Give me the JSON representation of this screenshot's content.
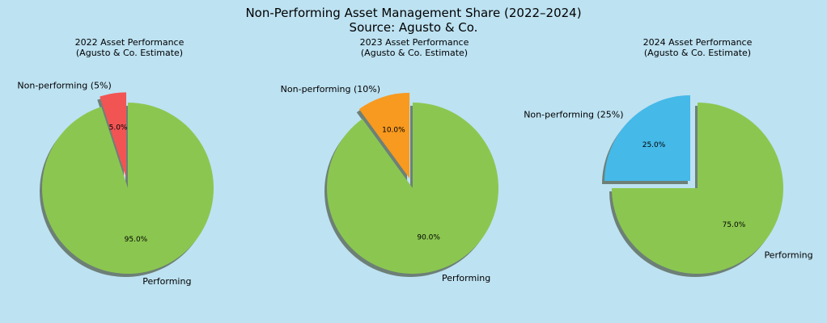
{
  "title_line1": "Non-Performing Asset Management Share (2022–2024)",
  "title_line2": "Source: Agusto & Co.",
  "chart_data": [
    {
      "type": "pie",
      "title_line1": "2022 Asset Performance",
      "title_line2": "(Agusto & Co. Estimate)",
      "slices": [
        {
          "label": "Non-performing (5%)",
          "value": 5.0,
          "pct_label": "5.0%",
          "color": "#f25454",
          "explode": true
        },
        {
          "label": "Performing",
          "value": 95.0,
          "pct_label": "95.0%",
          "color": "#8bc750",
          "explode": false
        }
      ]
    },
    {
      "type": "pie",
      "title_line1": "2023 Asset Performance",
      "title_line2": "(Agusto & Co. Estimate)",
      "slices": [
        {
          "label": "Non-performing (10%)",
          "value": 10.0,
          "pct_label": "10.0%",
          "color": "#f79a1f",
          "explode": true
        },
        {
          "label": "Performing",
          "value": 90.0,
          "pct_label": "90.0%",
          "color": "#8bc750",
          "explode": false
        }
      ]
    },
    {
      "type": "pie",
      "title_line1": "2024 Asset Performance",
      "title_line2": "(Agusto & Co. Estimate)",
      "slices": [
        {
          "label": "Non-performing (25%)",
          "value": 25.0,
          "pct_label": "25.0%",
          "color": "#45b9e8",
          "explode": true
        },
        {
          "label": "Performing",
          "value": 75.0,
          "pct_label": "75.0%",
          "color": "#8bc750",
          "explode": false
        }
      ]
    }
  ]
}
